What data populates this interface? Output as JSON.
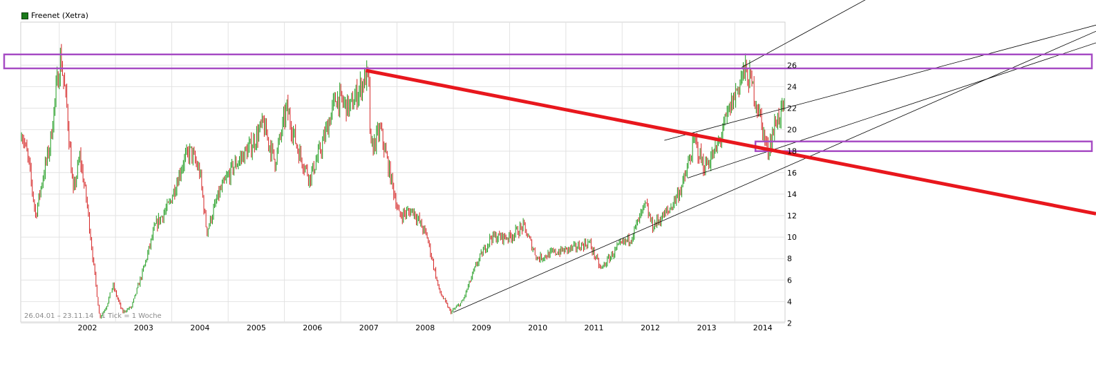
{
  "legend": {
    "label": "Freenet (Xetra)",
    "color": "#1a7a1a"
  },
  "footer": {
    "range": "26.04.01 – 23.11.14",
    "tick": "1 Tick = 1 Woche"
  },
  "colors": {
    "up": "#1a9a1a",
    "down": "#d42020",
    "trendline": "#e8171d",
    "zone": "#a64bc4",
    "channel": "#000000",
    "grid": "#e2e2e2"
  },
  "chart_data": {
    "type": "line",
    "subtype": "candlestick",
    "x_range": [
      "2001-04-26",
      "2014-11-23"
    ],
    "year_ticks": [
      "2002",
      "2003",
      "2004",
      "2005",
      "2006",
      "2007",
      "2008",
      "2009",
      "2010",
      "2011",
      "2012",
      "2013",
      "2014"
    ],
    "y_ticks": [
      2,
      4,
      6,
      8,
      10,
      12,
      14,
      16,
      18,
      20,
      22,
      24,
      26
    ],
    "ylim": [
      0,
      27
    ],
    "grid": true,
    "series": [
      {
        "values": [
          [
            "2001-05-01",
            20.0
          ],
          [
            "2001-06-15",
            17.0
          ],
          [
            "2001-08-01",
            12.0
          ],
          [
            "2001-09-15",
            15.5
          ],
          [
            "2001-11-01",
            18.5
          ],
          [
            "2001-12-15",
            24.0
          ],
          [
            "2002-01-10",
            26.8
          ],
          [
            "2002-02-20",
            22.0
          ],
          [
            "2002-04-01",
            14.0
          ],
          [
            "2002-05-15",
            17.5
          ],
          [
            "2002-07-01",
            13.0
          ],
          [
            "2002-08-15",
            7.0
          ],
          [
            "2002-09-20",
            2.5
          ],
          [
            "2002-11-01",
            3.5
          ],
          [
            "2002-12-15",
            5.5
          ],
          [
            "2003-02-15",
            3.0
          ],
          [
            "2003-04-15",
            3.5
          ],
          [
            "2003-07-01",
            7.0
          ],
          [
            "2003-09-15",
            11.0
          ],
          [
            "2003-12-15",
            13.0
          ],
          [
            "2004-03-15",
            17.0
          ],
          [
            "2004-05-01",
            18.0
          ],
          [
            "2004-07-01",
            16.0
          ],
          [
            "2004-08-15",
            10.5
          ],
          [
            "2004-11-01",
            14.0
          ],
          [
            "2005-02-01",
            16.5
          ],
          [
            "2005-06-01",
            18.5
          ],
          [
            "2005-08-15",
            20.5
          ],
          [
            "2005-11-01",
            17.0
          ],
          [
            "2006-01-15",
            22.0
          ],
          [
            "2006-04-01",
            18.0
          ],
          [
            "2006-06-15",
            15.5
          ],
          [
            "2006-09-01",
            18.5
          ],
          [
            "2006-12-01",
            23.0
          ],
          [
            "2007-03-01",
            22.0
          ],
          [
            "2007-06-15",
            25.0
          ],
          [
            "2007-07-01",
            24.5
          ],
          [
            "2007-07-15",
            18.0
          ],
          [
            "2007-09-15",
            20.0
          ],
          [
            "2007-11-15",
            16.0
          ],
          [
            "2008-01-15",
            12.0
          ],
          [
            "2008-04-15",
            12.5
          ],
          [
            "2008-07-15",
            10.0
          ],
          [
            "2008-10-01",
            5.0
          ],
          [
            "2008-12-15",
            3.0
          ],
          [
            "2009-03-01",
            4.0
          ],
          [
            "2009-06-01",
            7.5
          ],
          [
            "2009-09-01",
            10.0
          ],
          [
            "2010-01-01",
            10.0
          ],
          [
            "2010-04-01",
            11.0
          ],
          [
            "2010-07-01",
            8.0
          ],
          [
            "2010-10-01",
            8.5
          ],
          [
            "2011-03-01",
            9.0
          ],
          [
            "2011-06-01",
            9.5
          ],
          [
            "2011-08-15",
            7.0
          ],
          [
            "2011-12-01",
            9.0
          ],
          [
            "2012-03-01",
            10.0
          ],
          [
            "2012-06-01",
            13.0
          ],
          [
            "2012-07-15",
            11.0
          ],
          [
            "2012-11-01",
            12.5
          ],
          [
            "2013-02-01",
            15.0
          ],
          [
            "2013-04-15",
            19.0
          ],
          [
            "2013-06-15",
            16.5
          ],
          [
            "2013-09-01",
            18.0
          ],
          [
            "2013-12-01",
            22.0
          ],
          [
            "2014-03-01",
            25.5
          ],
          [
            "2014-04-15",
            24.5
          ],
          [
            "2014-06-01",
            22.0
          ],
          [
            "2014-08-01",
            18.0
          ],
          [
            "2014-10-01",
            21.0
          ],
          [
            "2014-11-20",
            22.0
          ]
        ]
      }
    ],
    "annotations": {
      "red_trendline": [
        [
          "2007-06-15",
          25.5
        ],
        [
          "2014-10-01",
          18.0
        ]
      ],
      "resistance_zone": [
        25.7,
        27.0
      ],
      "support_zone": [
        18.0,
        18.9
      ],
      "channel_lines": [
        [
          [
            "2009-01-01",
            3.0
          ],
          [
            "2014-11-23",
            16.5
          ]
        ],
        [
          [
            "2013-03-01",
            15.5
          ],
          [
            "2014-11-23",
            18.5
          ]
        ],
        [
          [
            "2012-10-01",
            19.0
          ],
          [
            "2014-11-23",
            22.0
          ]
        ],
        [
          [
            "2014-02-15",
            25.8
          ],
          [
            "2014-11-23",
            28.0
          ]
        ]
      ]
    }
  }
}
